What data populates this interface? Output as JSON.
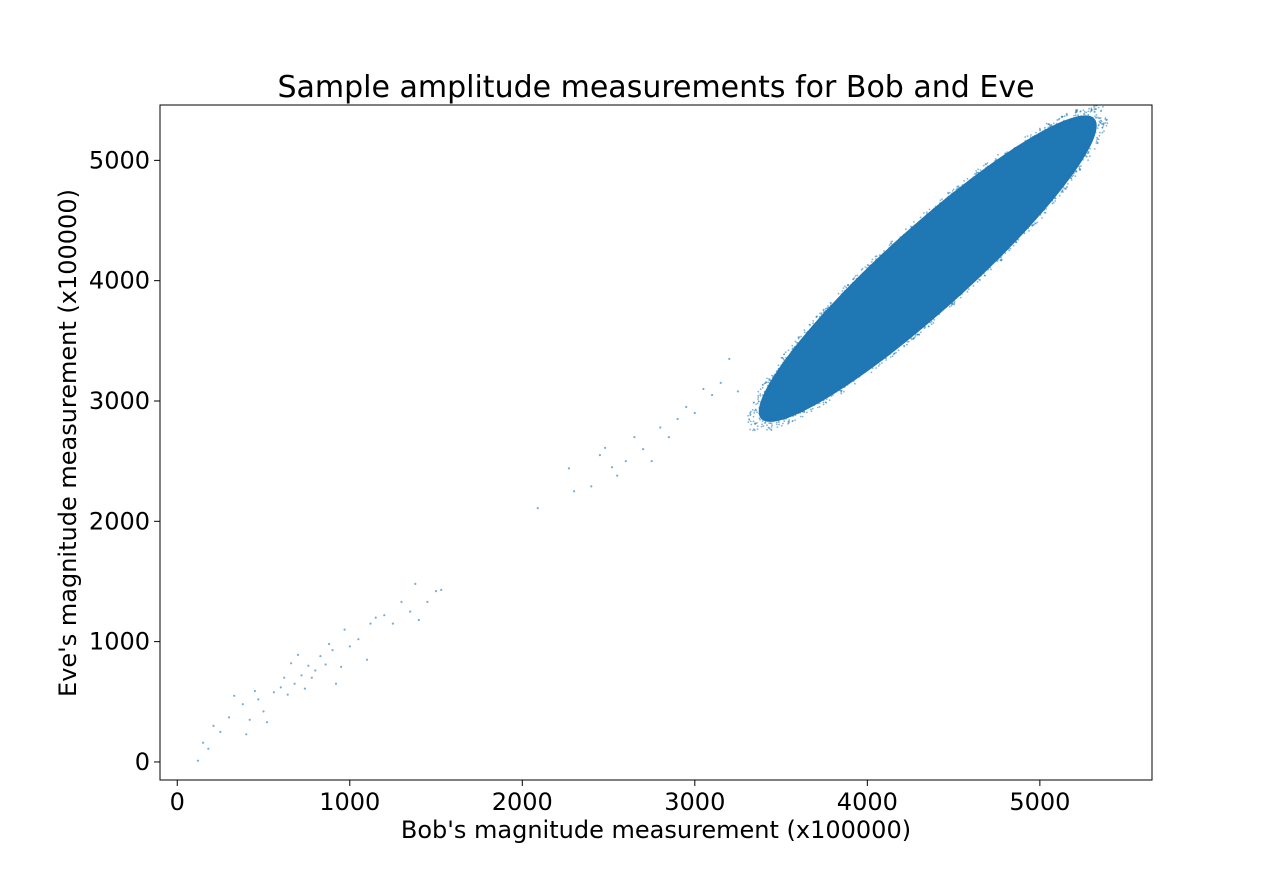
{
  "chart_data": {
    "type": "scatter",
    "title": "Sample amplitude measurements for Bob and Eve",
    "xlabel": "Bob's magnitude measurement (x100000)",
    "ylabel": "Eve's magnitude measurement (x100000)",
    "xlim": [
      -100,
      5650
    ],
    "ylim": [
      -150,
      5460
    ],
    "xticks": [
      0,
      1000,
      2000,
      3000,
      4000,
      5000
    ],
    "xtick_labels": [
      "0",
      "1000",
      "2000",
      "3000",
      "4000",
      "5000"
    ],
    "yticks": [
      0,
      1000,
      2000,
      3000,
      4000,
      5000
    ],
    "ytick_labels": [
      "0",
      "1000",
      "2000",
      "3000",
      "4000",
      "5000"
    ],
    "grid": false,
    "legend": "none",
    "series": [
      {
        "color": "#1f77b4",
        "points": [
          [
            120,
            10
          ],
          [
            150,
            160
          ],
          [
            180,
            110
          ],
          [
            210,
            300
          ],
          [
            250,
            250
          ],
          [
            300,
            370
          ],
          [
            330,
            550
          ],
          [
            380,
            480
          ],
          [
            400,
            230
          ],
          [
            420,
            350
          ],
          [
            450,
            590
          ],
          [
            470,
            520
          ],
          [
            500,
            420
          ],
          [
            520,
            330
          ],
          [
            560,
            580
          ],
          [
            600,
            620
          ],
          [
            620,
            700
          ],
          [
            640,
            560
          ],
          [
            660,
            820
          ],
          [
            680,
            650
          ],
          [
            700,
            890
          ],
          [
            720,
            720
          ],
          [
            740,
            610
          ],
          [
            760,
            800
          ],
          [
            780,
            700
          ],
          [
            800,
            760
          ],
          [
            830,
            880
          ],
          [
            860,
            810
          ],
          [
            880,
            980
          ],
          [
            900,
            930
          ],
          [
            920,
            650
          ],
          [
            950,
            790
          ],
          [
            970,
            1100
          ],
          [
            1000,
            960
          ],
          [
            1050,
            1020
          ],
          [
            1100,
            850
          ],
          [
            1120,
            1150
          ],
          [
            1150,
            1200
          ],
          [
            1200,
            1220
          ],
          [
            1250,
            1150
          ],
          [
            1300,
            1330
          ],
          [
            1350,
            1250
          ],
          [
            1380,
            1480
          ],
          [
            1400,
            1180
          ],
          [
            1450,
            1330
          ],
          [
            1500,
            1420
          ],
          [
            1530,
            1430
          ],
          [
            2090,
            2110
          ],
          [
            2270,
            2440
          ],
          [
            2300,
            2250
          ],
          [
            2400,
            2290
          ],
          [
            2450,
            2550
          ],
          [
            2480,
            2610
          ],
          [
            2520,
            2450
          ],
          [
            2550,
            2380
          ],
          [
            2600,
            2500
          ],
          [
            2650,
            2700
          ],
          [
            2700,
            2600
          ],
          [
            2750,
            2500
          ],
          [
            2800,
            2780
          ],
          [
            2850,
            2700
          ],
          [
            2900,
            2850
          ],
          [
            2950,
            2950
          ],
          [
            3000,
            2900
          ],
          [
            3050,
            3100
          ],
          [
            3100,
            3050
          ],
          [
            3150,
            3150
          ],
          [
            3200,
            3350
          ],
          [
            3250,
            3080
          ]
        ],
        "cluster": {
          "center": [
            4350,
            4100
          ],
          "semi_major": 1300,
          "semi_minor": 330,
          "angle_deg": 42,
          "x_range": [
            3150,
            5500
          ],
          "y_range": [
            3000,
            5400
          ],
          "approx_count": 100000
        }
      }
    ]
  }
}
